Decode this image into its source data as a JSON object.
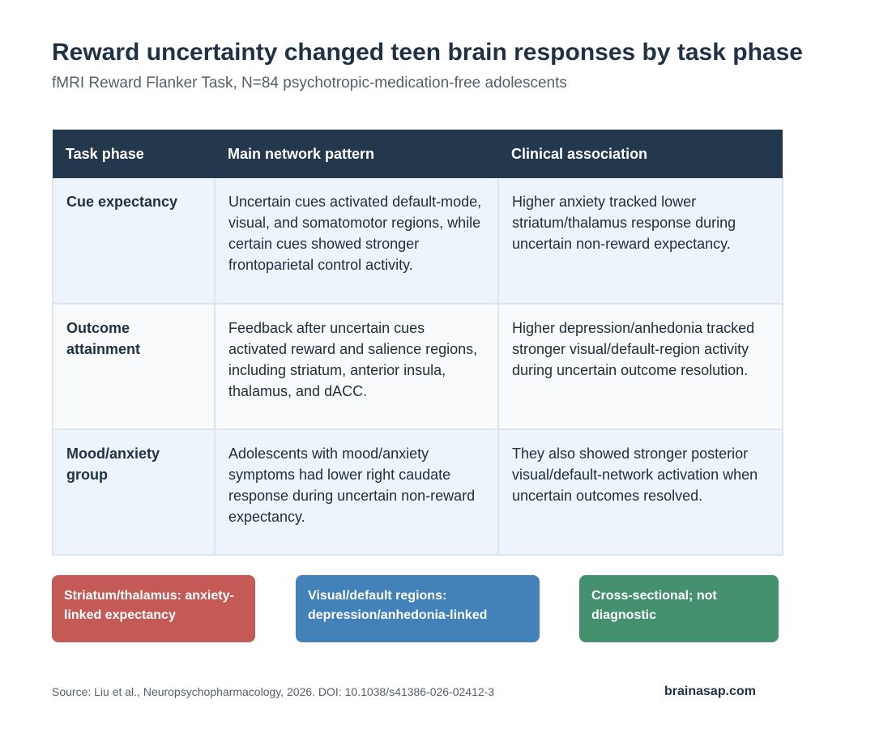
{
  "header": {
    "title": "Reward uncertainty changed teen brain responses by task phase",
    "subtitle": "fMRI Reward Flanker Task, N=84 psychotropic-medication-free adolescents"
  },
  "table": {
    "columns": [
      "Task phase",
      "Main network pattern",
      "Clinical association"
    ],
    "rows": [
      {
        "phase": "Cue expectancy",
        "pattern": "Uncertain cues activated default-mode, visual, and somatomotor regions, while certain cues showed stronger frontoparietal control activity.",
        "clinical": "Higher anxiety tracked lower striatum/thalamus response during uncertain non-reward expectancy."
      },
      {
        "phase": "Outcome attainment",
        "pattern": "Feedback after uncertain cues activated reward and salience regions, including striatum, anterior insula, thalamus, and dACC.",
        "clinical": "Higher depression/anhedonia tracked stronger visual/default-region activity during uncertain outcome resolution."
      },
      {
        "phase": "Mood/anxiety group",
        "pattern": "Adolescents with mood/anxiety symptoms had lower right caudate response during uncertain non-reward expectancy.",
        "clinical": "They also showed stronger posterior visual/default-network activation when uncertain outcomes resolved."
      }
    ]
  },
  "badges": [
    {
      "text": "Striatum/thalamus: anxiety-linked expectancy",
      "color": "#c45a55"
    },
    {
      "text": "Visual/default regions: depression/anhedonia-linked",
      "color": "#4382b8"
    },
    {
      "text": "Cross-sectional; not diagnostic",
      "color": "#45906e"
    }
  ],
  "footer": {
    "source": "Source: Liu et al., Neuropsychopharmacology, 2026. DOI: 10.1038/s41386-026-02412-3",
    "brand": "brainasap.com"
  },
  "colors": {
    "header_bg": "#23374d",
    "row_alt_bg": "#eef4fb",
    "row_plain_bg": "#f8fafc",
    "title": "#1f3245"
  }
}
